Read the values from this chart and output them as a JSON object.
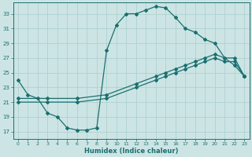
{
  "xlabel": "Humidex (Indice chaleur)",
  "xlim": [
    -0.5,
    23.5
  ],
  "ylim": [
    16.0,
    34.5
  ],
  "yticks": [
    17,
    19,
    21,
    23,
    25,
    27,
    29,
    31,
    33
  ],
  "xticks": [
    0,
    1,
    2,
    3,
    4,
    5,
    6,
    7,
    8,
    9,
    10,
    11,
    12,
    13,
    14,
    15,
    16,
    17,
    18,
    19,
    20,
    21,
    22,
    23
  ],
  "bg_color": "#cde4e4",
  "line_color": "#1a7070",
  "grid_color": "#b0d0d0",
  "line1_x": [
    0,
    1,
    2,
    3,
    4,
    5,
    6,
    7,
    8,
    9,
    10,
    11,
    12,
    13,
    14,
    15,
    16,
    17,
    18,
    19,
    20,
    21,
    22,
    23
  ],
  "line1_y": [
    24.0,
    22.0,
    21.5,
    19.5,
    19.0,
    17.5,
    17.2,
    17.2,
    17.5,
    28.0,
    31.5,
    33.0,
    33.0,
    33.5,
    34.0,
    33.8,
    32.5,
    31.0,
    30.5,
    29.5,
    29.0,
    27.0,
    26.0,
    24.5
  ],
  "line2_x": [
    0,
    3,
    6,
    9,
    12,
    14,
    15,
    16,
    17,
    18,
    19,
    20,
    21,
    22,
    23
  ],
  "line2_y": [
    21.5,
    21.5,
    21.5,
    22.0,
    23.5,
    24.5,
    25.0,
    25.5,
    26.0,
    26.5,
    27.0,
    27.5,
    27.0,
    27.0,
    24.5
  ],
  "line3_x": [
    0,
    3,
    6,
    9,
    12,
    14,
    15,
    16,
    17,
    18,
    19,
    20,
    21,
    22,
    23
  ],
  "line3_y": [
    21.0,
    21.0,
    21.0,
    21.5,
    23.0,
    24.0,
    24.5,
    25.0,
    25.5,
    26.0,
    26.5,
    27.0,
    26.5,
    26.5,
    24.5
  ]
}
